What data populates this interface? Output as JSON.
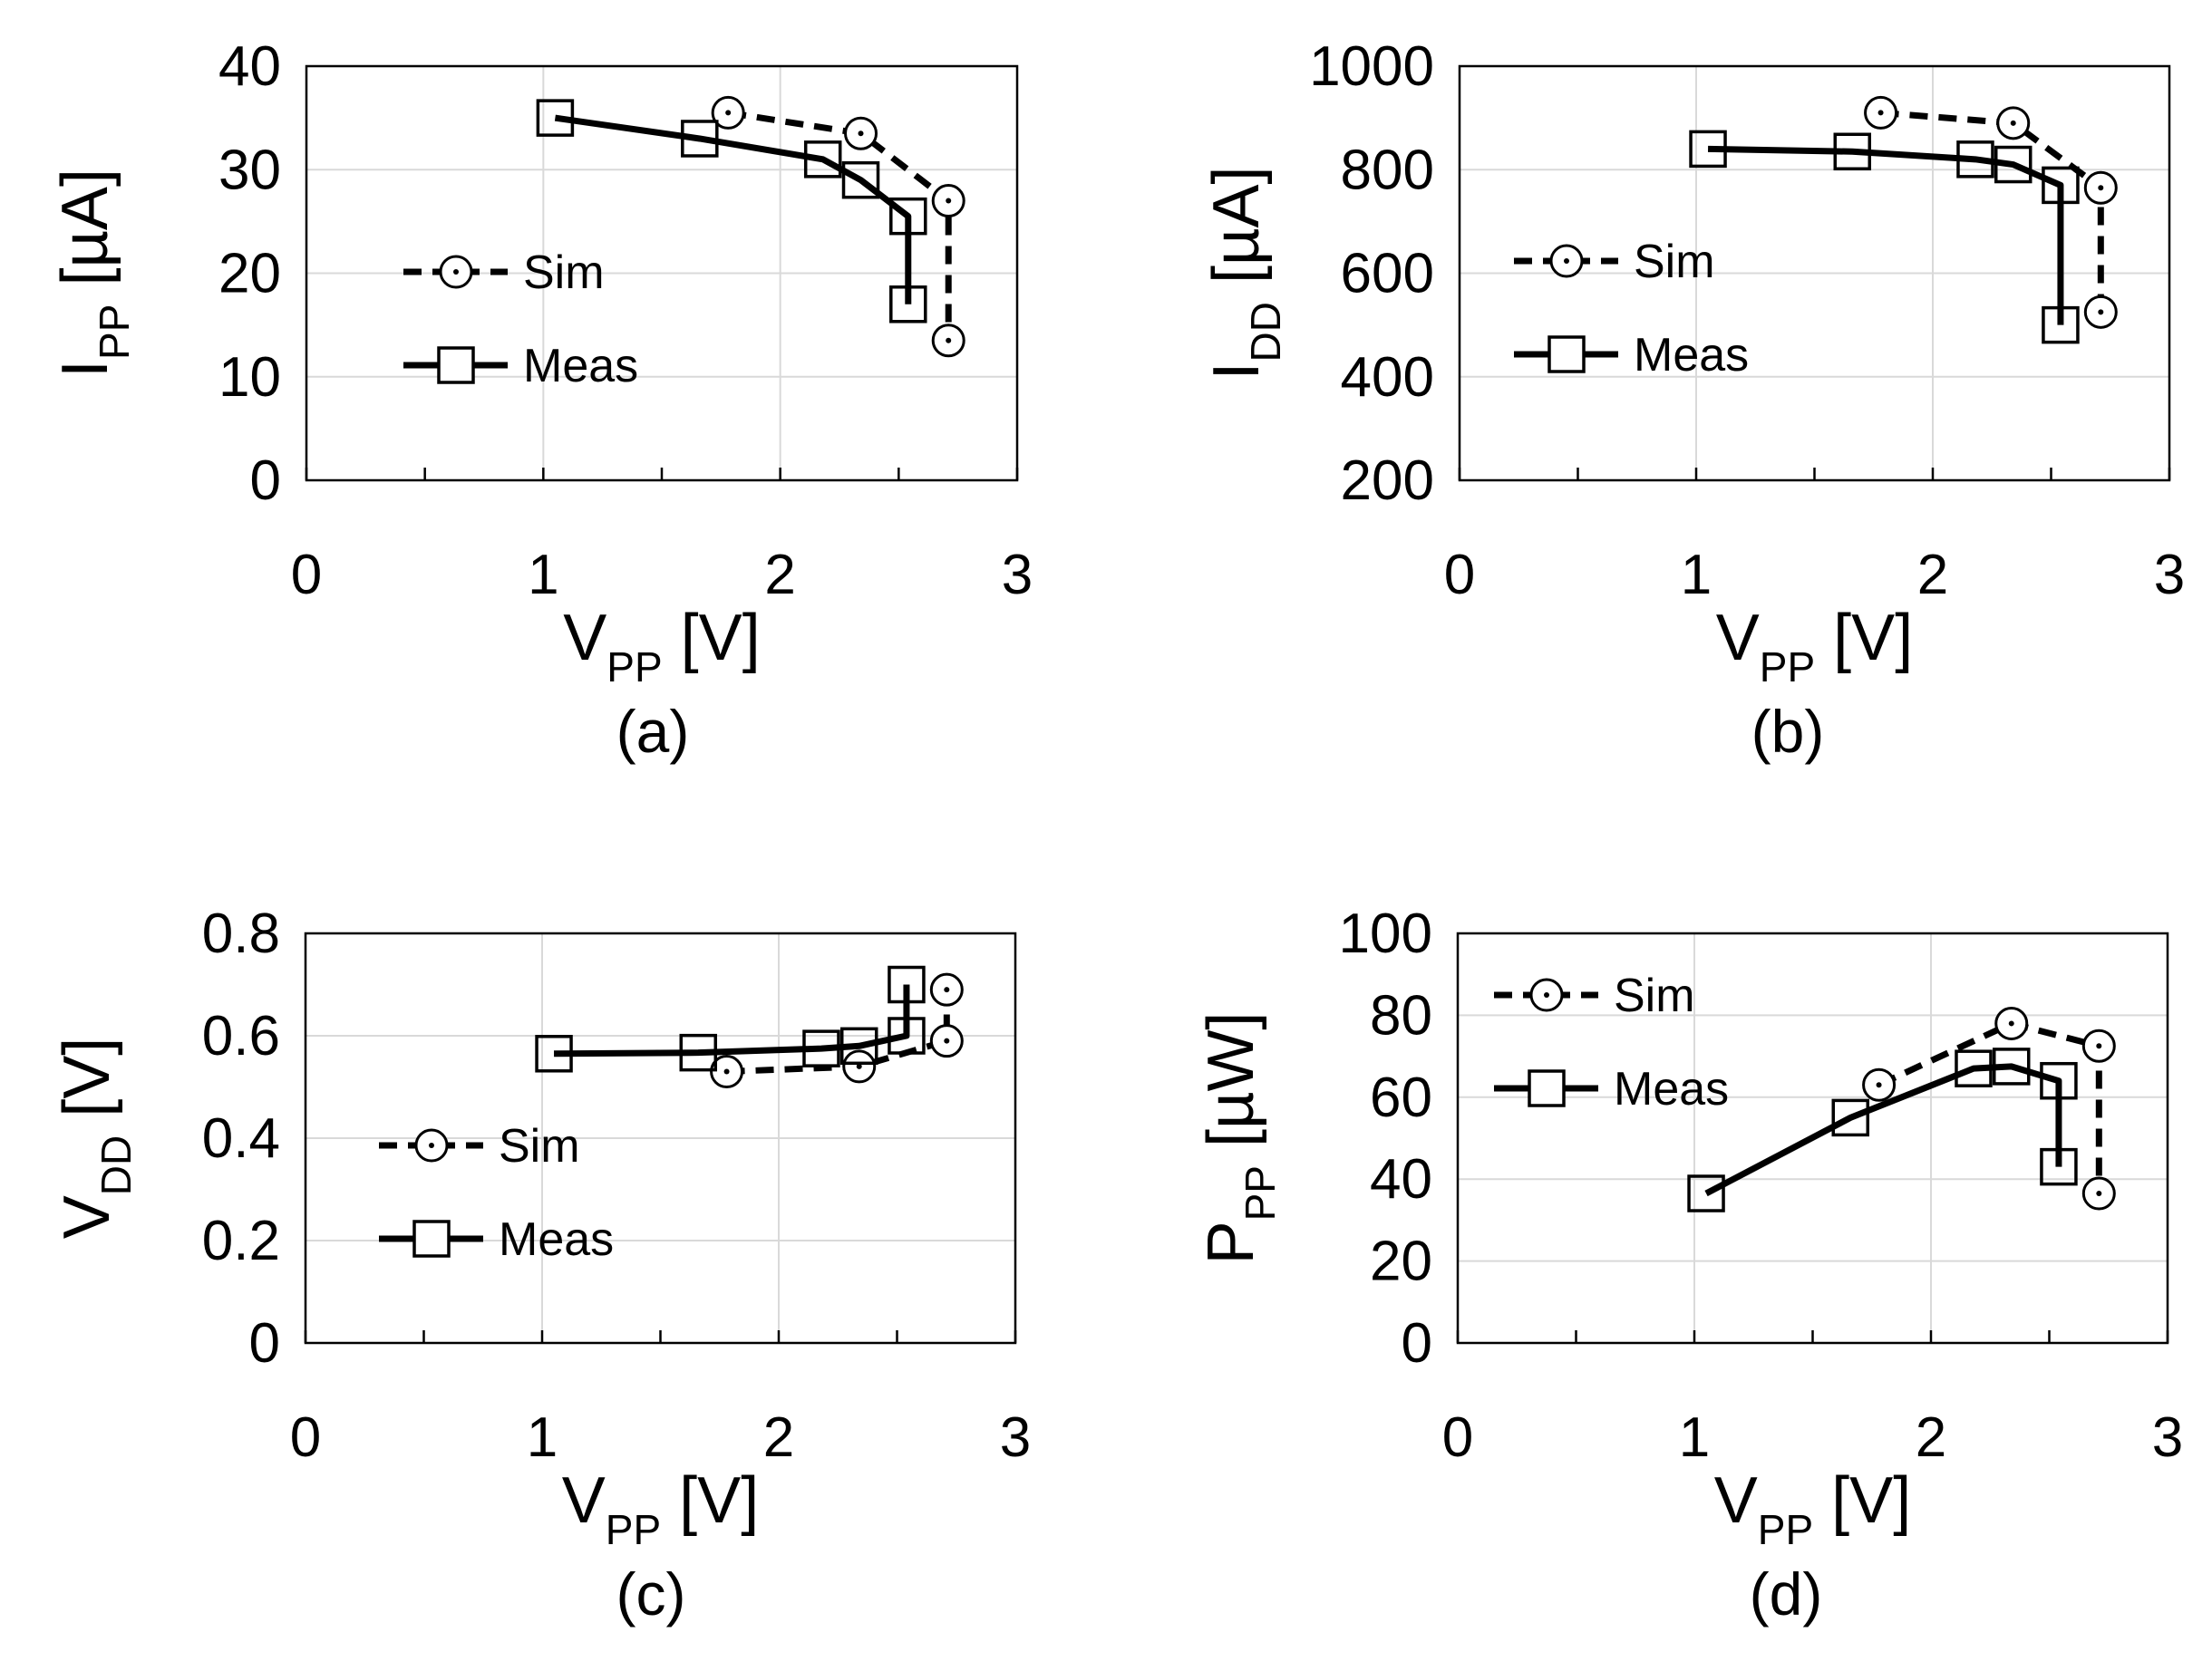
{
  "chart_data": [
    {
      "id": "a",
      "type": "line",
      "caption": "(a)",
      "xlabel": {
        "main": "V",
        "sub": "PP",
        "unit": "[V]"
      },
      "ylabel": {
        "main": "I",
        "sub": "PP",
        "unit": "[µA]"
      },
      "xlim": [
        0,
        3
      ],
      "ylim": [
        0,
        40
      ],
      "xticks": [
        0,
        1,
        2,
        3
      ],
      "xtick_labels": [
        "0",
        "1",
        "2",
        "3"
      ],
      "yticks": [
        0,
        10,
        20,
        30,
        40
      ],
      "ytick_labels": [
        "0",
        "10",
        "20",
        "30",
        "40"
      ],
      "grid": true,
      "legend": {
        "placement": "center-left",
        "items": [
          "Sim",
          "Meas"
        ]
      },
      "series": [
        {
          "name": "Sim",
          "style": "dashed",
          "marker": "circle",
          "x": [
            1.78,
            2.34,
            2.71,
            2.71
          ],
          "y": [
            35.5,
            33.5,
            27.0,
            13.5
          ]
        },
        {
          "name": "Meas",
          "style": "solid",
          "marker": "square",
          "x": [
            1.05,
            1.66,
            2.18,
            2.34,
            2.54,
            2.54
          ],
          "y": [
            35.0,
            33.0,
            31.0,
            29.0,
            25.5,
            17.0
          ]
        }
      ]
    },
    {
      "id": "b",
      "type": "line",
      "caption": "(b)",
      "xlabel": {
        "main": "V",
        "sub": "PP",
        "unit": "[V]"
      },
      "ylabel": {
        "main": "I",
        "sub": "DD",
        "unit": "[µA]"
      },
      "xlim": [
        0,
        3
      ],
      "ylim": [
        200,
        1000
      ],
      "xticks": [
        0,
        1,
        2,
        3
      ],
      "xtick_labels": [
        "0",
        "1",
        "2",
        "3"
      ],
      "yticks": [
        200,
        400,
        600,
        800,
        1000
      ],
      "ytick_labels": [
        "200",
        "400",
        "600",
        "800",
        "1000"
      ],
      "grid": true,
      "legend": {
        "placement": "center-left",
        "items": [
          "Sim",
          "Meas"
        ]
      },
      "series": [
        {
          "name": "Sim",
          "style": "dashed",
          "marker": "circle",
          "x": [
            1.78,
            2.34,
            2.71,
            2.71
          ],
          "y": [
            910,
            890,
            765,
            525
          ]
        },
        {
          "name": "Meas",
          "style": "solid",
          "marker": "square",
          "x": [
            1.05,
            1.66,
            2.18,
            2.34,
            2.54,
            2.54
          ],
          "y": [
            840,
            835,
            820,
            810,
            770,
            500
          ]
        }
      ]
    },
    {
      "id": "c",
      "type": "line",
      "caption": "(c)",
      "xlabel": {
        "main": "V",
        "sub": "PP",
        "unit": "[V]"
      },
      "ylabel": {
        "main": "V",
        "sub": "DD",
        "unit": "[V]"
      },
      "xlim": [
        0,
        3
      ],
      "ylim": [
        0,
        0.8
      ],
      "xticks": [
        0,
        1,
        2,
        3
      ],
      "xtick_labels": [
        "0",
        "1",
        "2",
        "3"
      ],
      "yticks": [
        0,
        0.2,
        0.4,
        0.6,
        0.8
      ],
      "ytick_labels": [
        "0",
        "0.2",
        "0.4",
        "0.6",
        "0.8"
      ],
      "grid": true,
      "legend": {
        "placement": "lower-left",
        "items": [
          "Sim",
          "Meas"
        ]
      },
      "series": [
        {
          "name": "Sim",
          "style": "dashed",
          "marker": "circle",
          "x": [
            1.78,
            2.34,
            2.71,
            2.71
          ],
          "y": [
            0.53,
            0.54,
            0.59,
            0.69
          ]
        },
        {
          "name": "Meas",
          "style": "solid",
          "marker": "square",
          "x": [
            1.05,
            1.66,
            2.18,
            2.34,
            2.54,
            2.54
          ],
          "y": [
            0.565,
            0.567,
            0.575,
            0.58,
            0.6,
            0.7
          ]
        }
      ]
    },
    {
      "id": "d",
      "type": "line",
      "caption": "(d)",
      "xlabel": {
        "main": "V",
        "sub": "PP",
        "unit": "[V]"
      },
      "ylabel": {
        "main": "P",
        "sub": "PP",
        "unit": "[µW]"
      },
      "xlim": [
        0,
        3
      ],
      "ylim": [
        0,
        100
      ],
      "xticks": [
        0,
        1,
        2,
        3
      ],
      "xtick_labels": [
        "0",
        "1",
        "2",
        "3"
      ],
      "yticks": [
        0,
        20,
        40,
        60,
        80,
        100
      ],
      "ytick_labels": [
        "0",
        "20",
        "40",
        "60",
        "80",
        "100"
      ],
      "grid": true,
      "legend": {
        "placement": "top-left",
        "items": [
          "Sim",
          "Meas"
        ]
      },
      "series": [
        {
          "name": "Sim",
          "style": "dashed",
          "marker": "circle",
          "x": [
            1.78,
            2.34,
            2.71,
            2.71
          ],
          "y": [
            63,
            78,
            72.5,
            36.5
          ]
        },
        {
          "name": "Meas",
          "style": "solid",
          "marker": "square",
          "x": [
            1.05,
            1.66,
            2.18,
            2.34,
            2.54,
            2.54
          ],
          "y": [
            36.5,
            55,
            67,
            67.5,
            64,
            43
          ]
        }
      ]
    }
  ]
}
